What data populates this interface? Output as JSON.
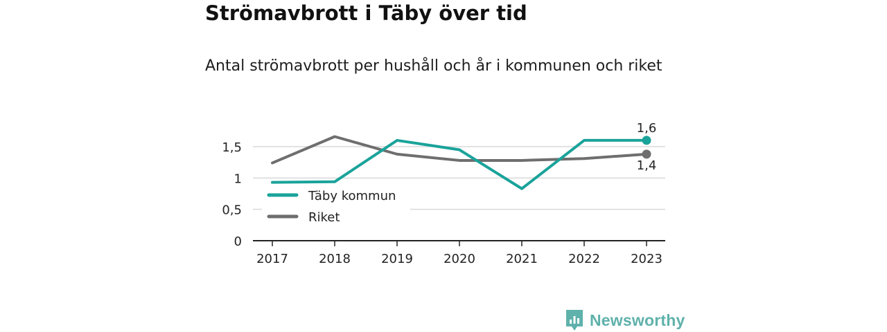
{
  "title": "Strömavbrott i Täby över tid",
  "subtitle": "Antal strömavbrott per hushåll och år i kommunen och riket",
  "brand": "Newsworthy",
  "colors": {
    "taby": "#1aa39a",
    "riket": "#6e6e6e",
    "grid": "#d9d9d9",
    "axis": "#222222",
    "brand": "#5fb1ab"
  },
  "chart_data": {
    "type": "line",
    "categories": [
      "2017",
      "2018",
      "2019",
      "2020",
      "2021",
      "2022",
      "2023"
    ],
    "ylim": [
      0,
      1.65
    ],
    "yticks": [
      0,
      0.5,
      1,
      1.5
    ],
    "ytick_labels": [
      "0",
      "0,5",
      "1",
      "1,5"
    ],
    "grid": true,
    "legend": "bottom-left",
    "series": [
      {
        "name": "Täby kommun",
        "color": "#1aa39a",
        "values": [
          0.93,
          0.94,
          1.6,
          1.45,
          0.83,
          1.6,
          1.6
        ],
        "end_label": "1,6"
      },
      {
        "name": "Riket",
        "color": "#6e6e6e",
        "values": [
          1.24,
          1.66,
          1.38,
          1.28,
          1.28,
          1.31,
          1.38
        ],
        "end_label": "1,4"
      }
    ]
  }
}
